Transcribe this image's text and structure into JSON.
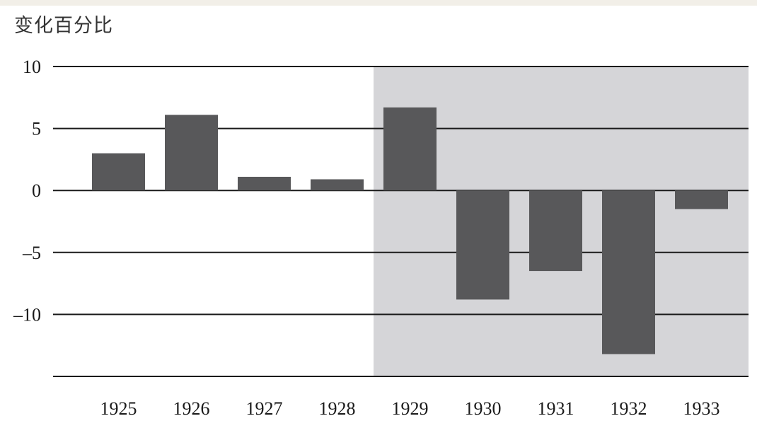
{
  "chart_data": {
    "type": "bar",
    "title": "",
    "xlabel": "",
    "ylabel": "变化百分比",
    "categories": [
      "1925",
      "1926",
      "1927",
      "1928",
      "1929",
      "1930",
      "1931",
      "1932",
      "1933"
    ],
    "values": [
      3.0,
      6.1,
      1.1,
      0.9,
      6.7,
      -8.8,
      -6.5,
      -13.2,
      -1.5
    ],
    "ylim": [
      -15,
      10
    ],
    "yticks": [
      10,
      5,
      0,
      -5,
      -10
    ],
    "ytick_labels": [
      "10",
      "5",
      "0",
      "–5",
      "–10"
    ],
    "grid": true,
    "shaded_from_category": "1929",
    "colors": {
      "bar": "#58585a",
      "shade": "#d5d5d8",
      "grid": "#1a1a1a"
    }
  }
}
